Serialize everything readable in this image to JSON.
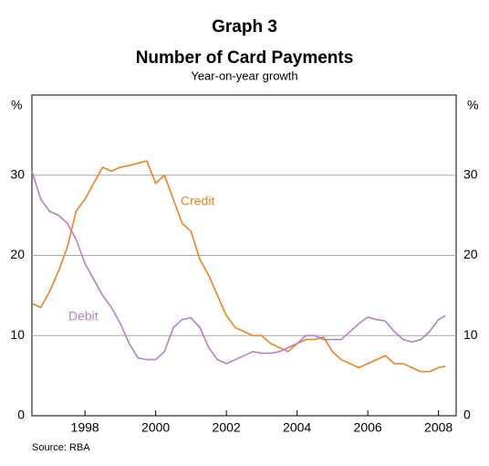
{
  "chart_data": {
    "type": "line",
    "title": "Graph 3",
    "subtitle": "Number of Card Payments",
    "caption": "Year-on-year growth",
    "y_label": "%",
    "source": "Source: RBA",
    "x": [
      1996.5,
      1996.75,
      1997,
      1997.25,
      1997.5,
      1997.75,
      1998,
      1998.25,
      1998.5,
      1998.75,
      1999,
      1999.25,
      1999.5,
      1999.75,
      2000,
      2000.25,
      2000.5,
      2000.75,
      2001,
      2001.25,
      2001.5,
      2001.75,
      2002,
      2002.25,
      2002.5,
      2002.75,
      2003,
      2003.25,
      2003.5,
      2003.75,
      2004,
      2004.25,
      2004.5,
      2004.75,
      2005,
      2005.25,
      2005.5,
      2005.75,
      2006,
      2006.25,
      2006.5,
      2006.75,
      2007,
      2007.25,
      2007.5,
      2007.75,
      2008,
      2008.2
    ],
    "series": [
      {
        "name": "Credit",
        "color": "#f0821e",
        "values": [
          14,
          13.5,
          15.5,
          18,
          21,
          25.5,
          27,
          29,
          31,
          30.5,
          31,
          31.2,
          31.5,
          31.8,
          29,
          30,
          27,
          24,
          23,
          19.5,
          17.5,
          15,
          12.5,
          11,
          10.5,
          10,
          10,
          9,
          8.5,
          8,
          9,
          9.5,
          9.5,
          9.8,
          8,
          7,
          6.5,
          6,
          6.5,
          7,
          7.5,
          6.5,
          6.5,
          6,
          5.5,
          5.5,
          6,
          6.2
        ]
      },
      {
        "name": "Debit",
        "color": "#b77fc6",
        "values": [
          30.5,
          27,
          25.5,
          25,
          24,
          22,
          19,
          17,
          15,
          13.5,
          11.5,
          9,
          7.2,
          7,
          7,
          8,
          11,
          12,
          12.2,
          11,
          8.5,
          7,
          6.5,
          7,
          7.5,
          8,
          7.8,
          7.8,
          8,
          8.5,
          9,
          10,
          10,
          9.5,
          9.5,
          9.5,
          10.5,
          11.5,
          12.3,
          12,
          11.8,
          10.5,
          9.5,
          9.2,
          9.5,
          10.5,
          12,
          12.5
        ]
      }
    ],
    "xlim": [
      1996.5,
      2008.5
    ],
    "xticks": [
      1998,
      2000,
      2002,
      2004,
      2006,
      2008
    ],
    "ylim": [
      0,
      40
    ],
    "yticks": [
      0,
      10,
      20,
      30
    ],
    "grid": true
  }
}
